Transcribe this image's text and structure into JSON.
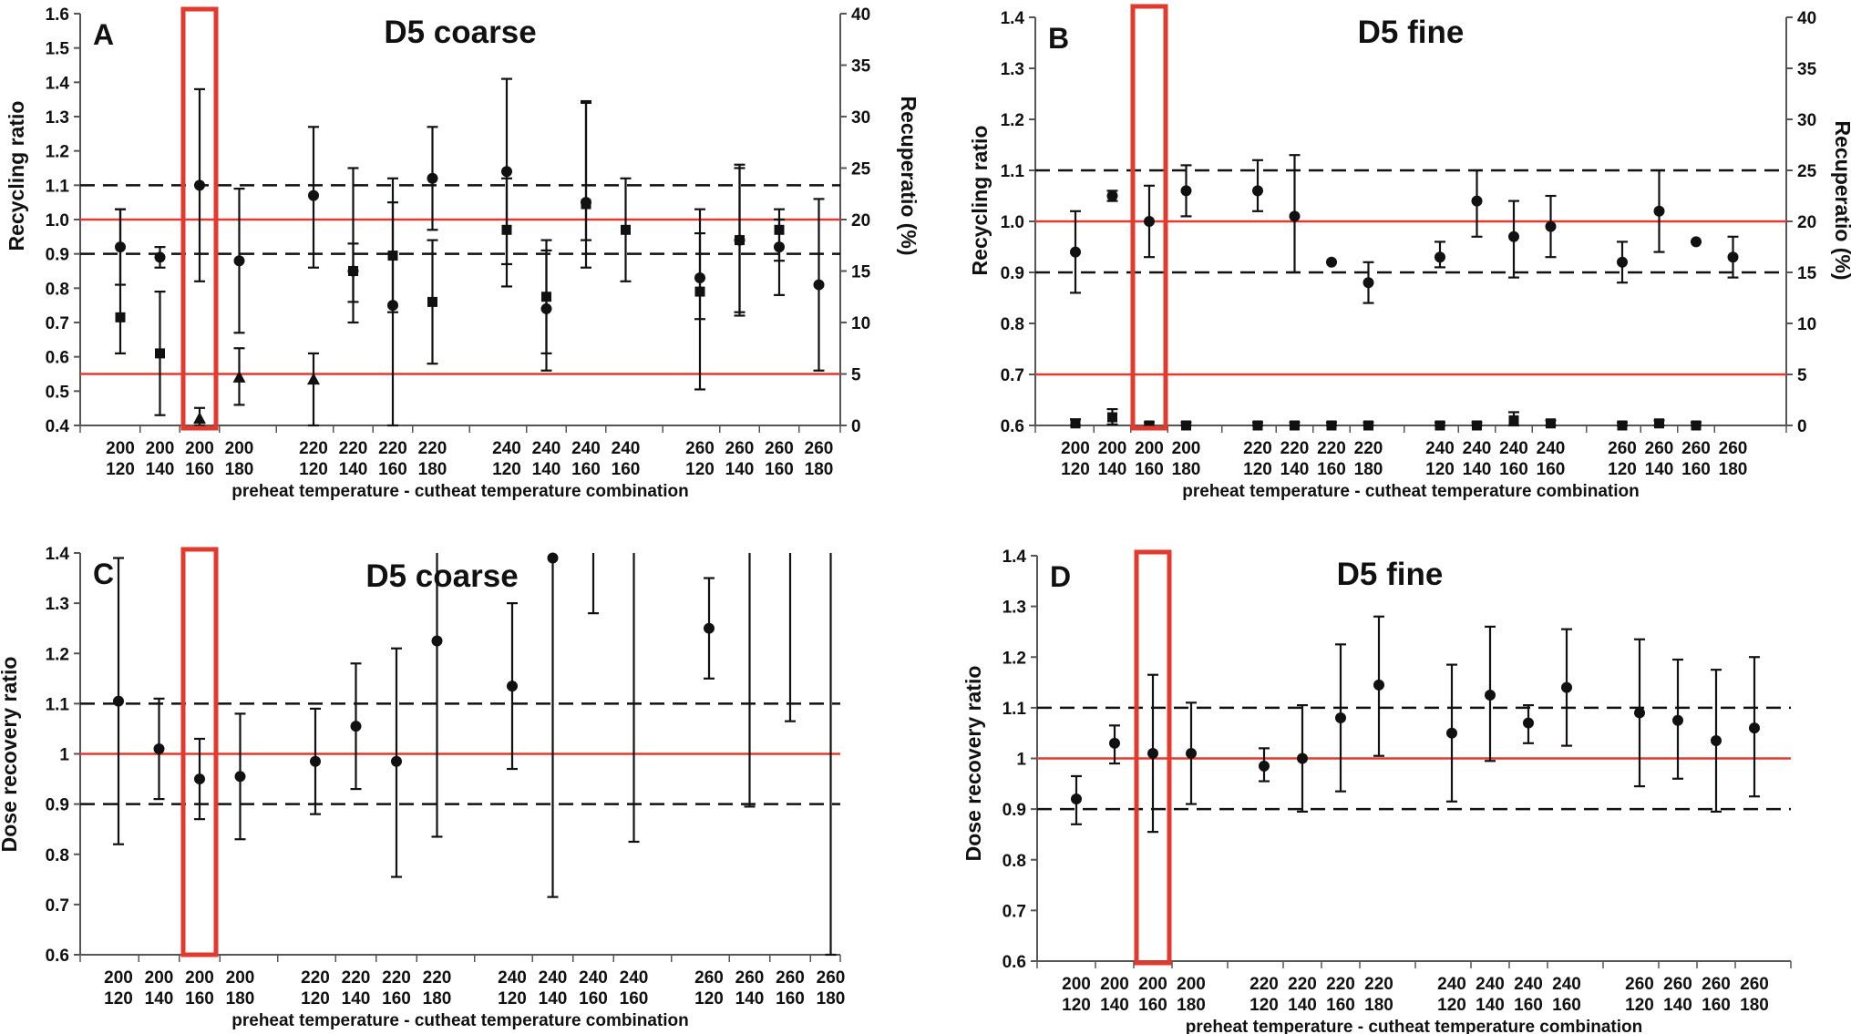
{
  "colors": {
    "marker": "#111111",
    "axis": "#555555",
    "ref_red": "#e23a2e",
    "box_red": "#e23a2e",
    "dashed": "#111111"
  },
  "chart_data": [
    {
      "type": "scatter",
      "panel_label": "A",
      "title": "D5 coarse",
      "xlabel": "preheat temperature - cutheat temperature combination",
      "ylabel": "Recycling ratio",
      "ylabel_right": "Recuperatio (%)",
      "ylim": [
        0.4,
        1.6
      ],
      "yticks": [
        "0.4",
        "0.5",
        "0.6",
        "0.7",
        "0.8",
        "0.9",
        "1.0",
        "1.1",
        "1.2",
        "1.3",
        "1.4",
        "1.5",
        "1.6"
      ],
      "ylim_right": [
        0,
        40
      ],
      "yticks_right": [
        "0",
        "5",
        "10",
        "15",
        "20",
        "25",
        "30",
        "35",
        "40"
      ],
      "categories": [
        {
          "top": "200",
          "bottom": "120"
        },
        {
          "top": "200",
          "bottom": "140"
        },
        {
          "top": "200",
          "bottom": "160"
        },
        {
          "top": "200",
          "bottom": "180"
        },
        {
          "top": "220",
          "bottom": "120"
        },
        {
          "top": "220",
          "bottom": "140"
        },
        {
          "top": "220",
          "bottom": "160"
        },
        {
          "top": "220",
          "bottom": "180"
        },
        {
          "top": "240",
          "bottom": "120"
        },
        {
          "top": "240",
          "bottom": "140"
        },
        {
          "top": "240",
          "bottom": "160"
        },
        {
          "top": "240",
          "bottom": "160"
        },
        {
          "top": "260",
          "bottom": "120"
        },
        {
          "top": "260",
          "bottom": "140"
        },
        {
          "top": "260",
          "bottom": "160"
        },
        {
          "top": "260",
          "bottom": "180"
        }
      ],
      "ref_lines": [
        {
          "y": 1.0,
          "style": "red"
        },
        {
          "y": 0.55,
          "style": "red"
        },
        {
          "y": 1.1,
          "style": "dashed"
        },
        {
          "y": 0.9,
          "style": "dashed"
        }
      ],
      "highlight_index": 2,
      "series": [
        {
          "marker": "circle",
          "axis": "left",
          "points": [
            {
              "y": 0.92,
              "lo": 0.81,
              "hi": 1.03
            },
            {
              "y": 0.89,
              "lo": 0.86,
              "hi": 0.92
            },
            {
              "y": 1.1,
              "lo": 0.82,
              "hi": 1.38
            },
            {
              "y": 0.88,
              "lo": 0.67,
              "hi": 1.09
            },
            {
              "y": 1.07,
              "lo": 0.86,
              "hi": 1.27
            },
            {
              "y": 0.85,
              "lo": 0.76,
              "hi": 0.93
            },
            {
              "y": 0.75,
              "lo": 0.4,
              "hi": 1.05
            },
            {
              "y": 1.12,
              "lo": 0.97,
              "hi": 1.27
            },
            {
              "y": 1.14,
              "lo": 0.87,
              "hi": 1.41
            },
            {
              "y": 0.74,
              "lo": 0.56,
              "hi": 0.91
            },
            {
              "y": 1.05,
              "lo": 0.86,
              "hi": 1.34
            },
            null,
            {
              "y": 0.83,
              "lo": 0.71,
              "hi": 0.96
            },
            {
              "y": 0.94,
              "lo": 0.72,
              "hi": 1.16
            },
            {
              "y": 0.92,
              "lo": 0.78,
              "hi": 1.0
            },
            {
              "y": 0.81,
              "lo": 0.56,
              "hi": 1.06
            }
          ]
        },
        {
          "marker": "square",
          "axis": "right",
          "points": [
            {
              "y": 10.5,
              "lo": 7,
              "hi": 21
            },
            {
              "y": 7,
              "lo": 1,
              "hi": 13
            },
            null,
            null,
            null,
            {
              "y": 15,
              "lo": 10,
              "hi": 25
            },
            {
              "y": 16.5,
              "lo": 11,
              "hi": 24
            },
            {
              "y": 12,
              "lo": 6,
              "hi": 18
            },
            {
              "y": 19,
              "lo": 13.5,
              "hi": 24
            },
            {
              "y": 12.5,
              "lo": 7,
              "hi": 18
            },
            {
              "y": 21.5,
              "lo": 18,
              "hi": 31.5
            },
            {
              "y": 19,
              "lo": 14,
              "hi": 24
            },
            {
              "y": 13,
              "lo": 3.5,
              "hi": 21
            },
            {
              "y": 18,
              "lo": 11,
              "hi": 25
            },
            {
              "y": 19,
              "lo": 16,
              "hi": 21
            },
            null
          ]
        },
        {
          "marker": "triangle",
          "axis": "right",
          "points": [
            null,
            null,
            {
              "y": 0.7,
              "lo": 0,
              "hi": 1.7
            },
            {
              "y": 4.7,
              "lo": 2,
              "hi": 7.5
            },
            {
              "y": 4.5,
              "lo": 0,
              "hi": 7
            },
            null,
            null,
            null,
            null,
            null,
            null,
            null,
            null,
            null,
            null,
            null
          ]
        }
      ]
    },
    {
      "type": "scatter",
      "panel_label": "B",
      "title": "D5 fine",
      "xlabel": "preheat temperature - cutheat temperature combination",
      "ylabel": "Recycling ratio",
      "ylabel_right": "Recuperatio (%)",
      "ylim": [
        0.6,
        1.4
      ],
      "yticks": [
        "0.6",
        "0.7",
        "0.8",
        "0.9",
        "1.0",
        "1.1",
        "1.2",
        "1.3",
        "1.4"
      ],
      "ylim_right": [
        0,
        40
      ],
      "yticks_right": [
        "0",
        "5",
        "10",
        "15",
        "20",
        "25",
        "30",
        "35",
        "40"
      ],
      "categories": [
        {
          "top": "200",
          "bottom": "120"
        },
        {
          "top": "200",
          "bottom": "140"
        },
        {
          "top": "200",
          "bottom": "160"
        },
        {
          "top": "200",
          "bottom": "180"
        },
        {
          "top": "220",
          "bottom": "120"
        },
        {
          "top": "220",
          "bottom": "140"
        },
        {
          "top": "220",
          "bottom": "160"
        },
        {
          "top": "220",
          "bottom": "180"
        },
        {
          "top": "240",
          "bottom": "120"
        },
        {
          "top": "240",
          "bottom": "140"
        },
        {
          "top": "240",
          "bottom": "160"
        },
        {
          "top": "240",
          "bottom": "160"
        },
        {
          "top": "260",
          "bottom": "120"
        },
        {
          "top": "260",
          "bottom": "140"
        },
        {
          "top": "260",
          "bottom": "160"
        },
        {
          "top": "260",
          "bottom": "180"
        }
      ],
      "ref_lines": [
        {
          "y": 1.0,
          "style": "red"
        },
        {
          "y": 0.7,
          "style": "red"
        },
        {
          "y": 1.1,
          "style": "dashed"
        },
        {
          "y": 0.9,
          "style": "dashed"
        }
      ],
      "highlight_index": 2,
      "series": [
        {
          "marker": "circle",
          "axis": "left",
          "points": [
            {
              "y": 0.94,
              "lo": 0.86,
              "hi": 1.02
            },
            {
              "y": 1.05,
              "lo": 1.04,
              "hi": 1.06
            },
            {
              "y": 1.0,
              "lo": 0.93,
              "hi": 1.07
            },
            {
              "y": 1.06,
              "lo": 1.01,
              "hi": 1.11
            },
            {
              "y": 1.06,
              "lo": 1.02,
              "hi": 1.12
            },
            {
              "y": 1.01,
              "lo": 0.9,
              "hi": 1.13
            },
            {
              "y": 0.92,
              "lo": 0.92,
              "hi": 0.92
            },
            {
              "y": 0.88,
              "lo": 0.84,
              "hi": 0.92
            },
            {
              "y": 0.93,
              "lo": 0.91,
              "hi": 0.96
            },
            {
              "y": 1.04,
              "lo": 0.97,
              "hi": 1.1
            },
            {
              "y": 0.97,
              "lo": 0.89,
              "hi": 1.04
            },
            {
              "y": 0.99,
              "lo": 0.93,
              "hi": 1.05
            },
            {
              "y": 0.92,
              "lo": 0.88,
              "hi": 0.96
            },
            {
              "y": 1.02,
              "lo": 0.94,
              "hi": 1.1
            },
            {
              "y": 0.96,
              "lo": 0.96,
              "hi": 0.96
            },
            {
              "y": 0.93,
              "lo": 0.89,
              "hi": 0.97
            }
          ]
        },
        {
          "marker": "square",
          "axis": "right",
          "points": [
            {
              "y": 0.2,
              "lo": 0,
              "hi": 0.6
            },
            {
              "y": 0.8,
              "lo": 0.1,
              "hi": 1.6
            },
            {
              "y": 0,
              "lo": 0,
              "hi": 0.3
            },
            {
              "y": 0,
              "lo": 0,
              "hi": 0.3
            },
            {
              "y": 0,
              "lo": 0,
              "hi": 0.3
            },
            {
              "y": 0,
              "lo": 0,
              "hi": 0.3
            },
            {
              "y": 0,
              "lo": 0,
              "hi": 0.3
            },
            {
              "y": 0,
              "lo": 0,
              "hi": 0.3
            },
            {
              "y": 0,
              "lo": 0,
              "hi": 0.3
            },
            {
              "y": 0,
              "lo": 0,
              "hi": 0.3
            },
            {
              "y": 0.5,
              "lo": 0,
              "hi": 1.3
            },
            {
              "y": 0.2,
              "lo": 0,
              "hi": 0.5
            },
            {
              "y": 0,
              "lo": 0,
              "hi": 0.3
            },
            {
              "y": 0.2,
              "lo": 0,
              "hi": 0.5
            },
            {
              "y": 0,
              "lo": 0,
              "hi": 0.3
            },
            null
          ]
        }
      ]
    },
    {
      "type": "scatter",
      "panel_label": "C",
      "title": "D5 coarse",
      "xlabel": "preheat temperature - cutheat temperature combination",
      "ylabel": "Dose recovery ratio",
      "ylim": [
        0.6,
        1.4
      ],
      "yticks": [
        "0.6",
        "0.7",
        "0.8",
        "0.9",
        "1",
        "1.1",
        "1.2",
        "1.3",
        "1.4"
      ],
      "categories": [
        {
          "top": "200",
          "bottom": "120"
        },
        {
          "top": "200",
          "bottom": "140"
        },
        {
          "top": "200",
          "bottom": "160"
        },
        {
          "top": "200",
          "bottom": "180"
        },
        {
          "top": "220",
          "bottom": "120"
        },
        {
          "top": "220",
          "bottom": "140"
        },
        {
          "top": "220",
          "bottom": "160"
        },
        {
          "top": "220",
          "bottom": "180"
        },
        {
          "top": "240",
          "bottom": "120"
        },
        {
          "top": "240",
          "bottom": "140"
        },
        {
          "top": "240",
          "bottom": "160"
        },
        {
          "top": "240",
          "bottom": "160"
        },
        {
          "top": "260",
          "bottom": "120"
        },
        {
          "top": "260",
          "bottom": "140"
        },
        {
          "top": "260",
          "bottom": "160"
        },
        {
          "top": "260",
          "bottom": "180"
        }
      ],
      "ref_lines": [
        {
          "y": 1.0,
          "style": "red"
        },
        {
          "y": 1.1,
          "style": "dashed"
        },
        {
          "y": 0.9,
          "style": "dashed"
        }
      ],
      "highlight_index": 2,
      "series": [
        {
          "marker": "circle",
          "axis": "left",
          "points": [
            {
              "y": 1.105,
              "lo": 0.82,
              "hi": 1.39
            },
            {
              "y": 1.01,
              "lo": 0.91,
              "hi": 1.11
            },
            {
              "y": 0.95,
              "lo": 0.87,
              "hi": 1.03
            },
            {
              "y": 0.955,
              "lo": 0.83,
              "hi": 1.08
            },
            {
              "y": 0.985,
              "lo": 0.88,
              "hi": 1.09
            },
            {
              "y": 1.055,
              "lo": 0.93,
              "hi": 1.18
            },
            {
              "y": 0.985,
              "lo": 0.755,
              "hi": 1.21
            },
            {
              "y": 1.225,
              "lo": 0.835,
              "hi": 1.5
            },
            {
              "y": 1.135,
              "lo": 0.97,
              "hi": 1.3
            },
            {
              "y": 1.39,
              "lo": 0.715,
              "hi": 1.5
            },
            {
              "y": null,
              "lo": 1.28,
              "hi": 1.5
            },
            {
              "y": null,
              "lo": 0.825,
              "hi": 1.5
            },
            {
              "y": 1.25,
              "lo": 1.15,
              "hi": 1.35
            },
            {
              "y": null,
              "lo": 0.895,
              "hi": 1.5
            },
            {
              "y": null,
              "lo": 1.065,
              "hi": 1.5
            },
            {
              "y": null,
              "lo": 0.6,
              "hi": 1.5
            }
          ]
        }
      ]
    },
    {
      "type": "scatter",
      "panel_label": "D",
      "title": "D5 fine",
      "xlabel": "preheat temperature - cutheat temperature combination",
      "ylabel": "Dose recovery ratio",
      "ylim": [
        0.6,
        1.4
      ],
      "yticks": [
        "0.6",
        "0.7",
        "0.8",
        "0.9",
        "1",
        "1.1",
        "1.2",
        "1.3",
        "1.4"
      ],
      "categories": [
        {
          "top": "200",
          "bottom": "120"
        },
        {
          "top": "200",
          "bottom": "140"
        },
        {
          "top": "200",
          "bottom": "160"
        },
        {
          "top": "200",
          "bottom": "180"
        },
        {
          "top": "220",
          "bottom": "120"
        },
        {
          "top": "220",
          "bottom": "140"
        },
        {
          "top": "220",
          "bottom": "160"
        },
        {
          "top": "220",
          "bottom": "180"
        },
        {
          "top": "240",
          "bottom": "120"
        },
        {
          "top": "240",
          "bottom": "140"
        },
        {
          "top": "240",
          "bottom": "160"
        },
        {
          "top": "240",
          "bottom": "160"
        },
        {
          "top": "260",
          "bottom": "120"
        },
        {
          "top": "260",
          "bottom": "140"
        },
        {
          "top": "260",
          "bottom": "160"
        },
        {
          "top": "260",
          "bottom": "180"
        }
      ],
      "ref_lines": [
        {
          "y": 1.0,
          "style": "red"
        },
        {
          "y": 1.1,
          "style": "dashed"
        },
        {
          "y": 0.9,
          "style": "dashed"
        }
      ],
      "highlight_index": 2,
      "series": [
        {
          "marker": "circle",
          "axis": "left",
          "points": [
            {
              "y": 0.92,
              "lo": 0.87,
              "hi": 0.965
            },
            {
              "y": 1.03,
              "lo": 0.99,
              "hi": 1.065
            },
            {
              "y": 1.01,
              "lo": 0.855,
              "hi": 1.165
            },
            {
              "y": 1.01,
              "lo": 0.91,
              "hi": 1.11
            },
            {
              "y": 0.985,
              "lo": 0.955,
              "hi": 1.02
            },
            {
              "y": 1.0,
              "lo": 0.895,
              "hi": 1.105
            },
            {
              "y": 1.08,
              "lo": 0.935,
              "hi": 1.225
            },
            {
              "y": 1.145,
              "lo": 1.005,
              "hi": 1.28
            },
            {
              "y": 1.05,
              "lo": 0.915,
              "hi": 1.185
            },
            {
              "y": 1.125,
              "lo": 0.995,
              "hi": 1.26
            },
            {
              "y": 1.07,
              "lo": 1.03,
              "hi": 1.105
            },
            {
              "y": 1.14,
              "lo": 1.025,
              "hi": 1.255
            },
            {
              "y": 1.09,
              "lo": 0.945,
              "hi": 1.235
            },
            {
              "y": 1.075,
              "lo": 0.96,
              "hi": 1.195
            },
            {
              "y": 1.035,
              "lo": 0.895,
              "hi": 1.175
            },
            {
              "y": 1.06,
              "lo": 0.925,
              "hi": 1.2
            }
          ]
        }
      ]
    }
  ]
}
